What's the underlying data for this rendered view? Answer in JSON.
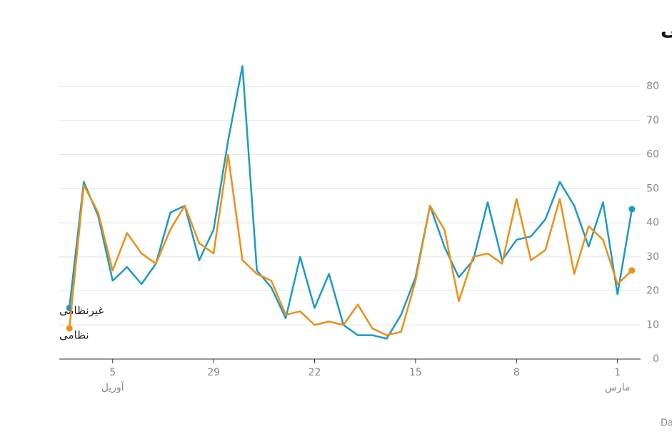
{
  "chart_data": {
    "type": "line",
    "title": "اهداف غیرنظامی و نظامی",
    "footer": "ایجاد شده با Datawrapper",
    "x": [
      0,
      1,
      2,
      3,
      4,
      5,
      6,
      7,
      8,
      9,
      10,
      11,
      12,
      13,
      14,
      15,
      16,
      17,
      18,
      19,
      20,
      21,
      22,
      23,
      24,
      25,
      26,
      27,
      28,
      29,
      30,
      31,
      32,
      33,
      34,
      35,
      36,
      37,
      38,
      39
    ],
    "xlim": [
      39.7,
      -0.6
    ],
    "xticks": [
      1,
      8,
      15,
      22,
      29,
      {
        "value": 36,
        "label": "5"
      }
    ],
    "x_month_labels": [
      {
        "value": 1,
        "label": "مارس"
      },
      {
        "value": 36,
        "label": "آوریل"
      }
    ],
    "ylim": [
      0,
      88
    ],
    "yticks": [
      0,
      10,
      20,
      30,
      40,
      50,
      60,
      70,
      80
    ],
    "grid": true,
    "series": [
      {
        "name": "غیرنظامی",
        "color": "#1a9bc7",
        "values": [
          44,
          19,
          46,
          33,
          45,
          52,
          41,
          36,
          35,
          29,
          46,
          29,
          24,
          33,
          45,
          24,
          13,
          6,
          7,
          7,
          10,
          25,
          15,
          30,
          12,
          21,
          26,
          86,
          64,
          38,
          29,
          45,
          43,
          28,
          22,
          27,
          23,
          42,
          52,
          15
        ]
      },
      {
        "name": "نظامی",
        "color": "#f28e13",
        "values": [
          26,
          22,
          35,
          39,
          25,
          47,
          32,
          29,
          47,
          28,
          31,
          30,
          17,
          38,
          45,
          23,
          8,
          7,
          9,
          16,
          10,
          11,
          10,
          14,
          13,
          23,
          25,
          29,
          60,
          31,
          34,
          45,
          38,
          28,
          31,
          37,
          26,
          43,
          51,
          9
        ]
      }
    ]
  }
}
